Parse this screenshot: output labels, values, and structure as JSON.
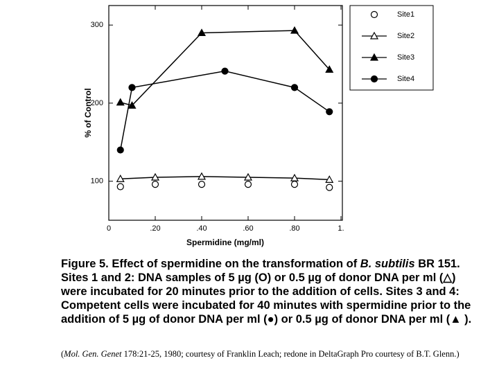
{
  "chart_data": {
    "type": "line",
    "xlabel": "Spermidine (mg/ml)",
    "ylabel": "% of Control",
    "xlim": [
      0,
      1
    ],
    "ylim": [
      50,
      325
    ],
    "xticks": [
      0,
      {
        "value": 0.2,
        "label": ".20"
      },
      {
        "value": 0.4,
        "label": ".40"
      },
      {
        "value": 0.6,
        "label": ".60"
      },
      {
        "value": 0.8,
        "label": ".80"
      },
      {
        "value": 1,
        "label": "1."
      }
    ],
    "yticks": [
      100,
      200,
      300
    ],
    "legend": "right",
    "series": [
      {
        "name": "Site1",
        "color": "#000000",
        "marker": "circle-open",
        "line": false,
        "x": [
          0.05,
          0.2,
          0.4,
          0.6,
          0.8,
          0.95
        ],
        "values": [
          93,
          96,
          96,
          96,
          96,
          92
        ]
      },
      {
        "name": "Site2",
        "color": "#000000",
        "marker": "triangle-open",
        "line": true,
        "x": [
          0.05,
          0.2,
          0.4,
          0.6,
          0.8,
          0.95
        ],
        "values": [
          103,
          105,
          106,
          105,
          104,
          102
        ]
      },
      {
        "name": "Site3",
        "color": "#000000",
        "marker": "triangle",
        "line": true,
        "x": [
          0.05,
          0.1,
          0.4,
          0.8,
          0.95
        ],
        "values": [
          201,
          197,
          290,
          293,
          243
        ]
      },
      {
        "name": "Site4",
        "color": "#000000",
        "marker": "circle",
        "line": true,
        "x": [
          0.05,
          0.1,
          0.5,
          0.8,
          0.95
        ],
        "values": [
          140,
          220,
          241,
          220,
          189
        ]
      }
    ]
  },
  "caption": [
    "Figure 5. Effect of spermidine on the transformation of ",
    "B. subtilis",
    " BR 151. Sites 1 and 2: DNA samples of 5 µg (O) or 0.5 µg of donor DNA per ml (△) were incubated for 20 minutes prior to the addition of cells. Sites 3 and 4: Competent cells were incubated for 40 minutes with spermidine prior to the addition of 5 µg of donor DNA per ml (●) or 0.5 µg of donor DNA per ml (▲ )."
  ],
  "source": [
    "(",
    "Mol. Gen. Genet",
    " 178:21-25, 1980; courtesy of Franklin Leach; redone in DeltaGraph Pro courtesy of B.T. Glenn.)"
  ]
}
